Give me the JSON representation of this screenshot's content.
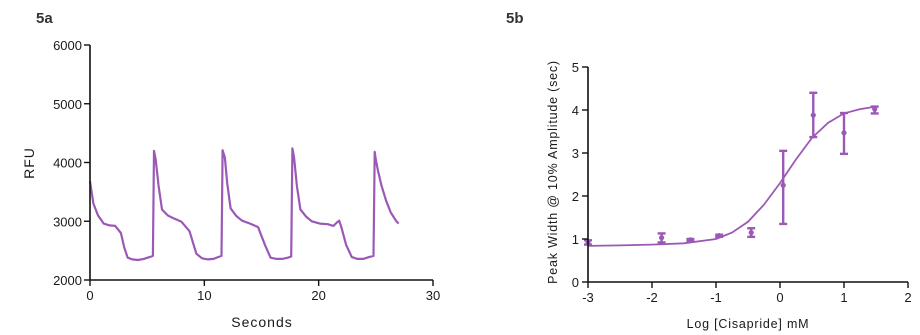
{
  "colors": {
    "series": "#9b59b6",
    "axis": "#111111"
  },
  "chart_data": [
    {
      "panel_label": "5a",
      "type": "line",
      "title": "",
      "xlabel": "Seconds",
      "ylabel": "RFU",
      "xlim": [
        0,
        30
      ],
      "ylim": [
        2000,
        6000
      ],
      "xticks": [
        0,
        10,
        20,
        30
      ],
      "xtick_labels": [
        "0",
        "10",
        "20",
        "30"
      ],
      "yticks": [
        2000,
        3000,
        4000,
        5000,
        6000
      ],
      "ytick_labels": [
        "2000",
        "3000",
        "4000",
        "5000",
        "6000"
      ],
      "grid": false,
      "series": [
        {
          "x": [
            0,
            0.3,
            0.7,
            1.2,
            1.7,
            2.2,
            2.7,
            3.0,
            3.3,
            3.7,
            4.2,
            4.7,
            5.2,
            5.5,
            5.6,
            5.75,
            6.0,
            6.3,
            6.8,
            7.3,
            8.0,
            8.7,
            9.3,
            9.8,
            10.3,
            10.8,
            11.2,
            11.5,
            11.6,
            11.8,
            12.0,
            12.3,
            12.8,
            13.3,
            14.0,
            14.7,
            15.3,
            15.8,
            16.3,
            16.8,
            17.3,
            17.6,
            17.7,
            17.85,
            18.1,
            18.4,
            18.9,
            19.4,
            20.1,
            20.8,
            21.3,
            21.6,
            21.8,
            22.0,
            22.4,
            22.9,
            23.4,
            23.9,
            24.4,
            24.8,
            24.9,
            25.0,
            25.2,
            25.5,
            25.9,
            26.3,
            26.8,
            27.0
          ],
          "y": [
            3680,
            3300,
            3100,
            2960,
            2930,
            2920,
            2800,
            2550,
            2380,
            2350,
            2340,
            2360,
            2390,
            2410,
            4200,
            4050,
            3600,
            3200,
            3100,
            3050,
            2990,
            2830,
            2450,
            2370,
            2350,
            2360,
            2390,
            2410,
            4210,
            4080,
            3650,
            3220,
            3090,
            3010,
            2960,
            2900,
            2600,
            2380,
            2360,
            2360,
            2380,
            2400,
            4240,
            4080,
            3600,
            3200,
            3080,
            3000,
            2960,
            2950,
            2920,
            2980,
            3010,
            2890,
            2600,
            2390,
            2360,
            2360,
            2390,
            2410,
            4180,
            4050,
            3850,
            3600,
            3350,
            3150,
            3000,
            2960
          ]
        }
      ]
    },
    {
      "panel_label": "5b",
      "type": "scatter",
      "title": "",
      "xlabel": "Log [Cisapride] mM",
      "ylabel": "Peak Width @ 10% Amplitude (sec)",
      "xlim": [
        -3,
        2
      ],
      "ylim": [
        0,
        5
      ],
      "xticks": [
        -3,
        -2,
        -1,
        0,
        1,
        2
      ],
      "xtick_labels": [
        "-3",
        "-2",
        "-1",
        "0",
        "1",
        "2"
      ],
      "yticks": [
        0,
        1,
        2,
        3,
        4,
        5
      ],
      "ytick_labels": [
        "0",
        "1",
        "2",
        "3",
        "4",
        "5"
      ],
      "grid": false,
      "series": [
        {
          "x": [
            -3.0,
            -1.85,
            -1.4,
            -0.95,
            -0.45,
            0.05,
            0.52,
            1.0,
            1.48
          ],
          "y": [
            0.92,
            1.03,
            0.98,
            1.08,
            1.15,
            2.25,
            3.88,
            3.47,
            4.02
          ],
          "err_low": [
            0.87,
            0.92,
            0.95,
            1.05,
            1.05,
            1.35,
            3.37,
            2.98,
            3.92
          ],
          "err_high": [
            0.97,
            1.13,
            1.0,
            1.1,
            1.25,
            3.05,
            4.4,
            3.93,
            4.08
          ]
        }
      ],
      "fit_curve": {
        "x": [
          -3.0,
          -2.5,
          -2.0,
          -1.5,
          -1.0,
          -0.75,
          -0.5,
          -0.25,
          0.0,
          0.25,
          0.5,
          0.75,
          1.0,
          1.25,
          1.5
        ],
        "y": [
          0.84,
          0.85,
          0.87,
          0.9,
          1.0,
          1.15,
          1.4,
          1.8,
          2.3,
          2.85,
          3.35,
          3.7,
          3.92,
          4.02,
          4.08
        ]
      }
    }
  ]
}
